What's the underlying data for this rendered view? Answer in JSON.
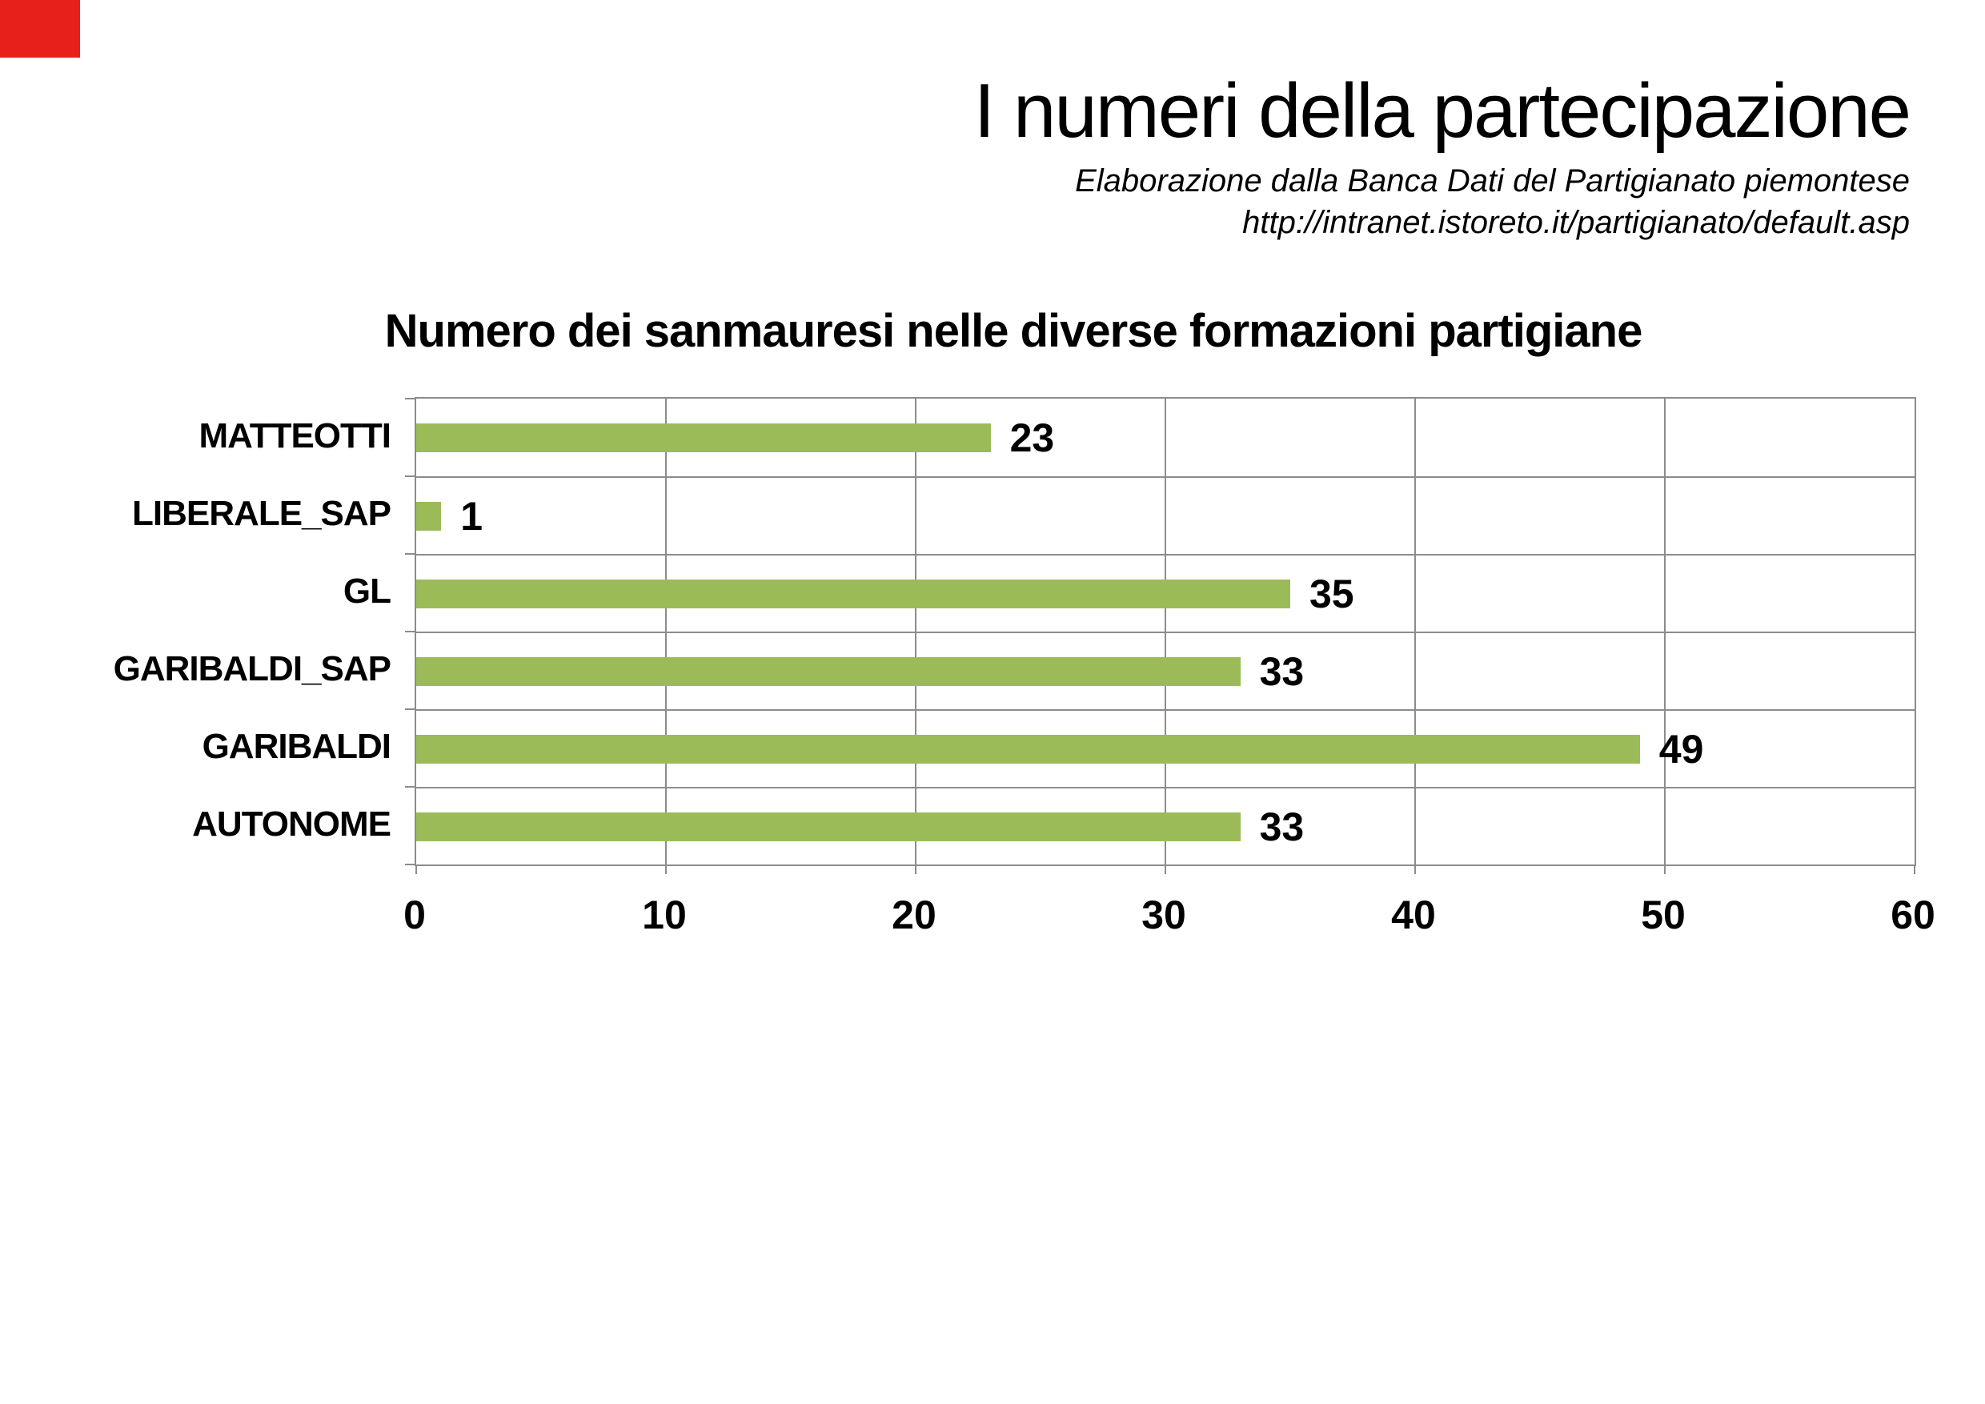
{
  "accent": {
    "red_block_color": "#E8201C"
  },
  "header": {
    "title": "I numeri della partecipazione",
    "subtitle_line1": "Elaborazione dalla Banca Dati del Partigianato piemontese",
    "subtitle_line2": "http://intranet.istoreto.it/partigianato/default.asp"
  },
  "chart_data": {
    "type": "bar",
    "orientation": "horizontal",
    "title": "Numero dei sanmauresi nelle diverse formazioni partigiane",
    "categories": [
      "MATTEOTTI",
      "LIBERALE_SAP",
      "GL",
      "GARIBALDI_SAP",
      "GARIBALDI",
      "AUTONOME"
    ],
    "values": [
      23,
      1,
      35,
      33,
      49,
      33
    ],
    "xlim": [
      0,
      60
    ],
    "xticks": [
      0,
      10,
      20,
      30,
      40,
      50,
      60
    ],
    "grid": true,
    "value_labels_shown": true,
    "bar_color": "#9BBB59",
    "gridline_color": "#8C8C8C",
    "text_color": "#000000",
    "legend": "none"
  }
}
